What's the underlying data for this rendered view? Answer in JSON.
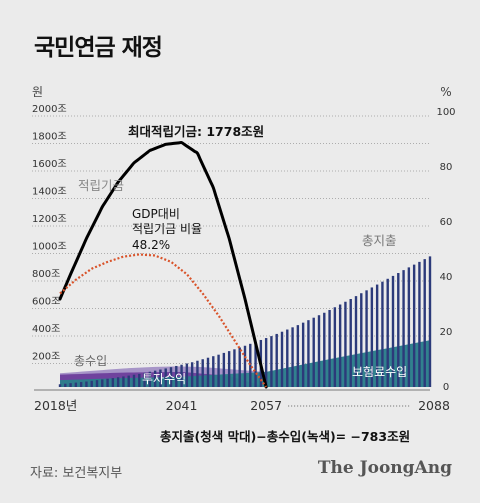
{
  "title": "국민연금 재정",
  "source": "자료: 보건복지부",
  "logo": "The JoongAng",
  "formula": "총지출(청색 막대)−총수입(녹색)= −783조원",
  "chart_data": {
    "type": "bar",
    "left_axis_unit": "원",
    "right_axis_unit": "%",
    "left_ticks": [
      "2000조",
      "1800조",
      "1600조",
      "1400조",
      "1200조",
      "1000조",
      "800조",
      "600조",
      "400조",
      "200조"
    ],
    "left_tick_values": [
      2000,
      1800,
      1600,
      1400,
      1200,
      1000,
      800,
      600,
      400,
      200
    ],
    "right_ticks": [
      "100",
      "80",
      "60",
      "40",
      "20",
      "0"
    ],
    "right_tick_values": [
      100,
      80,
      60,
      40,
      20,
      0
    ],
    "ylim_left": [
      0,
      2000
    ],
    "ylim_right": [
      0,
      100
    ],
    "x_ticks": [
      "2018년",
      "2041",
      "2057",
      "2088"
    ],
    "x_range": [
      2018,
      2088
    ],
    "labels": {
      "fund": "적립기금",
      "fund_peak": "최대적립기금: 1778조원",
      "ratio_line1": "GDP대비",
      "ratio_line2": "적립기금 비율",
      "ratio_value": "48.2%",
      "expenditure": "총지출",
      "revenue": "총수입",
      "investment": "투자수익",
      "premium": "보험료수입"
    },
    "colors": {
      "expenditure": "#2c3a7a",
      "premium": "#2a7f8b",
      "investment": "#6a3a99",
      "revenue_area": "#9b86c2",
      "fund_line": "#000000",
      "ratio_line": "#d9532a"
    },
    "fund": {
      "years": [
        2018,
        2020,
        2023,
        2026,
        2029,
        2032,
        2035,
        2038,
        2041,
        2044,
        2047,
        2050,
        2053,
        2056,
        2057
      ],
      "values": [
        640,
        820,
        1080,
        1310,
        1490,
        1630,
        1720,
        1765,
        1778,
        1700,
        1450,
        1080,
        640,
        160,
        0
      ]
    },
    "gdp_ratio": {
      "years": [
        2018,
        2021,
        2024,
        2027,
        2030,
        2033,
        2036,
        2039,
        2042,
        2045,
        2048,
        2051,
        2054,
        2057
      ],
      "values": [
        34,
        39,
        43,
        45.5,
        47.4,
        48.2,
        47.8,
        45.5,
        41,
        34,
        26,
        17,
        8,
        0
      ]
    },
    "expenditure": {
      "years": [
        2018,
        2023,
        2028,
        2033,
        2038,
        2043,
        2048,
        2053,
        2058,
        2063,
        2068,
        2073,
        2078,
        2083,
        2088
      ],
      "values": [
        20,
        40,
        65,
        95,
        135,
        180,
        235,
        300,
        370,
        450,
        540,
        640,
        745,
        850,
        950
      ]
    },
    "revenue": {
      "years": [
        2018,
        2025,
        2030,
        2035,
        2040,
        2045,
        2050,
        2055,
        2057,
        2088
      ],
      "values": [
        100,
        120,
        135,
        145,
        150,
        145,
        130,
        115,
        110,
        340
      ]
    },
    "premium": {
      "years": [
        2018,
        2030,
        2041,
        2057,
        2070,
        2088
      ],
      "values": [
        50,
        65,
        75,
        110,
        210,
        340
      ]
    }
  }
}
